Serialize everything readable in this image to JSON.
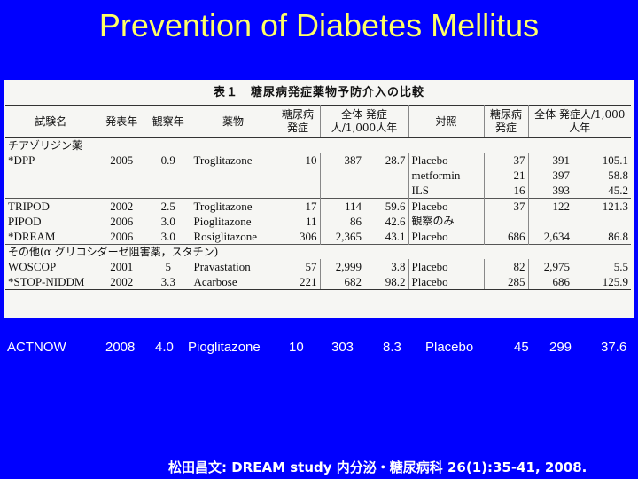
{
  "slide": {
    "title": "Prevention of Diabetes Mellitus",
    "reference": "松田昌文: DREAM study 内分泌・糖尿病科 26(1):35-41, 2008."
  },
  "table": {
    "caption": "表１　糖尿病発症薬物予防介入の比較",
    "headers": [
      "試験名",
      "発表年",
      "観察年",
      "薬物",
      "糖尿病発症",
      "全体 発症人/1,000人年",
      "対照",
      "糖尿病発症",
      "全体 発症人/1,000人年"
    ],
    "group_tzd": "チアゾリジン薬",
    "group_other": "その他(α グリコシダーゼ阻害薬，スタチン)",
    "rows": {
      "dpp": [
        "*DPP",
        "2005",
        "0.9",
        "Troglitazone",
        "10",
        "387",
        "28.7",
        "Placebo",
        "37",
        "391",
        "105.1"
      ],
      "dpp_met": [
        "metformin",
        "21",
        "397",
        "58.8"
      ],
      "dpp_ils": [
        "ILS",
        "16",
        "393",
        "45.2"
      ],
      "tripod": [
        "TRIPOD",
        "2002",
        "2.5",
        "Troglitazone",
        "17",
        "114",
        "59.6",
        "Placebo",
        "37",
        "122",
        "121.3"
      ],
      "pipod": [
        "PIPOD",
        "2006",
        "3.0",
        "Pioglitazone",
        "11",
        "86",
        "42.6",
        "観察のみ",
        "",
        "",
        ""
      ],
      "dream": [
        "*DREAM",
        "2006",
        "3.0",
        "Rosiglitazone",
        "306",
        "2,365",
        "43.1",
        "Placebo",
        "686",
        "2,634",
        "86.8"
      ],
      "woscop": [
        "WOSCOP",
        "2001",
        "5",
        "Pravastation",
        "57",
        "2,999",
        "3.8",
        "Placebo",
        "82",
        "2,975",
        "5.5"
      ],
      "stop": [
        "*STOP-NIDDM",
        "2002",
        "3.3",
        "Acarbose",
        "221",
        "682",
        "98.2",
        "Placebo",
        "285",
        "686",
        "125.9"
      ]
    }
  },
  "actnow": [
    "ACTNOW",
    "2008",
    "4.0",
    "Pioglitazone",
    "10",
    "303",
    "8.3",
    "Placebo",
    "45",
    "299",
    "37.6"
  ]
}
